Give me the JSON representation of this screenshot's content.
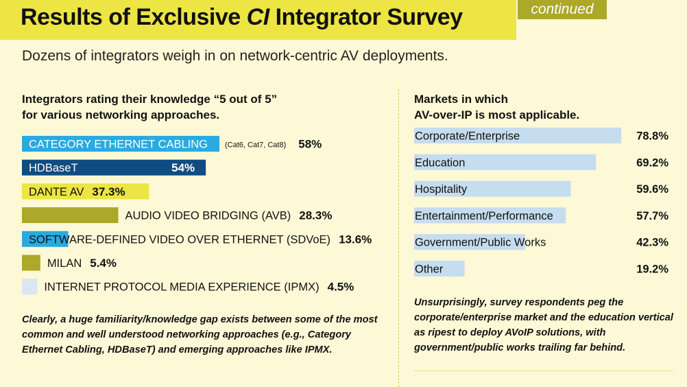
{
  "header": {
    "title_part1": "Results of Exclusive ",
    "title_em": "CI",
    "title_part2": " Integrator Survey",
    "continued": "continued",
    "subtitle": "Dozens of integrators weigh in on network-centric AV deployments."
  },
  "left_panel": {
    "title_line1": "Integrators rating their knowledge “5 out of 5”",
    "title_line2": "for various networking approaches.",
    "note": "Clearly, a huge familiarity/knowledge gap exists between some of the most common and well understood networking approaches (e.g., Category Ethernet Cabling, HDBaseT) and emerging approaches like IPMX."
  },
  "right_panel": {
    "title_line1": "Markets in which",
    "title_line2": "AV-over-IP is most applicable.",
    "note": "Unsurprisingly, survey respondents peg the corporate/enterprise market and the education vertical as ripest to deploy AVoIP solutions, with government/public works trailing far behind."
  },
  "colors": {
    "cyan": "#29aae1",
    "navy": "#0f4c81",
    "yellow": "#ece543",
    "olive": "#aba82a",
    "light_blue": "#c5ddee"
  },
  "chart_data": [
    {
      "type": "bar",
      "orientation": "horizontal",
      "categories": [
        "CATEGORY ETHERNET CABLING",
        "HDBaseT",
        "DANTE AV",
        "AUDIO VIDEO BRIDGING (AVB)",
        "SOFTWARE-DEFINED VIDEO OVER ETHERNET (SDVoE)",
        "MILAN",
        "INTERNET PROTOCOL MEDIA EXPERIENCE (IPMX)"
      ],
      "notes": [
        "(Cat6, Cat7, Cat8)",
        "",
        "",
        "",
        "",
        "",
        ""
      ],
      "values": [
        58,
        54,
        37.3,
        28.3,
        13.6,
        5.4,
        4.5
      ],
      "labels": [
        "58%",
        "54%",
        "37.3%",
        "28.3%",
        "13.6%",
        "5.4%",
        "4.5%"
      ],
      "colors": [
        "#29aae1",
        "#0f4c81",
        "#ece543",
        "#aba82a",
        "#29aae1",
        "#aba82a",
        "#d9e7f1"
      ],
      "label_colors": [
        "#ffffff",
        "#ffffff",
        "#111111",
        "#111111",
        "#111111",
        "#111111",
        "#111111"
      ]
    },
    {
      "type": "bar",
      "orientation": "horizontal",
      "categories": [
        "Corporate/Enterprise",
        "Education",
        "Hospitality",
        "Entertainment/Performance",
        "Government/Public Works",
        "Other"
      ],
      "values": [
        78.8,
        69.2,
        59.6,
        57.7,
        42.3,
        19.2
      ],
      "labels": [
        "78.8%",
        "69.2%",
        "59.6%",
        "57.7%",
        "42.3%",
        "19.2%"
      ],
      "bar_color": "#c5ddee"
    }
  ]
}
